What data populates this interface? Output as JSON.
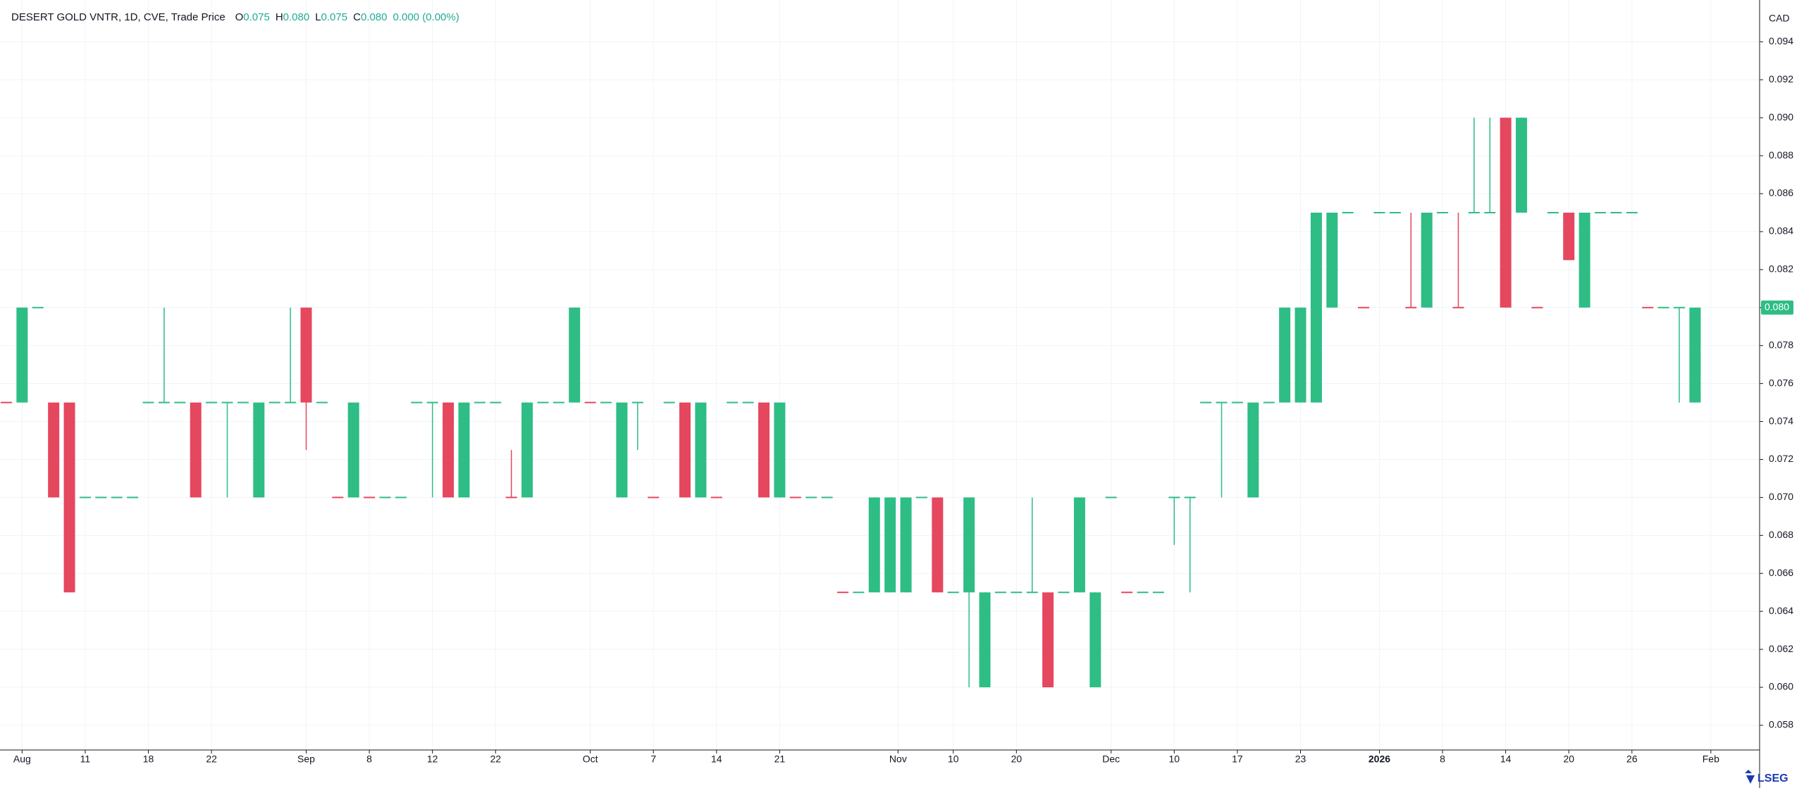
{
  "chart_data": {
    "type": "candlestick",
    "title": "DESERT GOLD VNTR, 1D, CVE, Trade Price",
    "ohlc_legend": [
      {
        "key": "O",
        "value": "0.075"
      },
      {
        "key": "H",
        "value": "0.080"
      },
      {
        "key": "L",
        "value": "0.075"
      },
      {
        "key": "C",
        "value": "0.080"
      }
    ],
    "change": "0.000 (0.00%)",
    "currency": "CAD",
    "brand": "LSEG",
    "up_color": "#2ebd85",
    "down_color": "#e5475f",
    "open": [
      0.075,
      0.075,
      0.08,
      0.075,
      0.075,
      0.07,
      0.07,
      0.07,
      0.07,
      0.075,
      0.075,
      0.075,
      0.075,
      0.075,
      0.075,
      0.075,
      0.07,
      0.075,
      0.075,
      0.08,
      0.075,
      0.07,
      0.07,
      0.07,
      0.07,
      0.07,
      0.075,
      0.075,
      0.075,
      0.07,
      0.075,
      0.075,
      0.07,
      0.07,
      0.075,
      0.075,
      0.075,
      0.075,
      0.075,
      0.07,
      0.075,
      0.07,
      0.075,
      0.075,
      0.07,
      0.07,
      0.075,
      0.075,
      0.075,
      0.07,
      0.07,
      0.07,
      0.07,
      0.065,
      0.065,
      0.065,
      0.065,
      0.065,
      0.07,
      0.07,
      0.065,
      0.065,
      0.06,
      0.065,
      0.065,
      0.065,
      0.065,
      0.065,
      0.065,
      0.06,
      0.07,
      0.065,
      0.065,
      0.065,
      0.07,
      0.07,
      0.075,
      0.075,
      0.075,
      0.07,
      0.075,
      0.075,
      0.075,
      0.075,
      0.08,
      0.085,
      0.08,
      0.085,
      0.085,
      0.08,
      0.08,
      0.085,
      0.08,
      0.085,
      0.085,
      0.09,
      0.085,
      0.08,
      0.085,
      0.085,
      0.08,
      0.085,
      0.085,
      0.085,
      0.08,
      0.08,
      0.08,
      0.075
    ],
    "high": [
      0.075,
      0.08,
      0.08,
      0.075,
      0.075,
      0.07,
      0.07,
      0.07,
      0.07,
      0.075,
      0.08,
      0.075,
      0.075,
      0.075,
      0.075,
      0.075,
      0.075,
      0.075,
      0.08,
      0.08,
      0.075,
      0.07,
      0.075,
      0.07,
      0.07,
      0.07,
      0.075,
      0.075,
      0.075,
      0.075,
      0.075,
      0.075,
      0.0725,
      0.075,
      0.075,
      0.075,
      0.08,
      0.075,
      0.075,
      0.075,
      0.075,
      0.07,
      0.075,
      0.075,
      0.075,
      0.07,
      0.075,
      0.075,
      0.075,
      0.075,
      0.07,
      0.07,
      0.07,
      0.065,
      0.065,
      0.07,
      0.07,
      0.07,
      0.07,
      0.07,
      0.065,
      0.07,
      0.065,
      0.065,
      0.065,
      0.07,
      0.065,
      0.065,
      0.07,
      0.065,
      0.07,
      0.065,
      0.065,
      0.065,
      0.07,
      0.07,
      0.075,
      0.075,
      0.075,
      0.075,
      0.075,
      0.08,
      0.08,
      0.085,
      0.085,
      0.085,
      0.08,
      0.085,
      0.085,
      0.085,
      0.085,
      0.085,
      0.085,
      0.09,
      0.09,
      0.09,
      0.09,
      0.08,
      0.085,
      0.085,
      0.085,
      0.085,
      0.085,
      0.085,
      0.08,
      0.08,
      0.08,
      0.08
    ],
    "low": [
      0.075,
      0.075,
      0.08,
      0.07,
      0.065,
      0.07,
      0.07,
      0.07,
      0.07,
      0.075,
      0.075,
      0.075,
      0.07,
      0.075,
      0.07,
      0.075,
      0.07,
      0.075,
      0.075,
      0.0725,
      0.075,
      0.07,
      0.07,
      0.07,
      0.07,
      0.07,
      0.075,
      0.07,
      0.07,
      0.07,
      0.075,
      0.075,
      0.07,
      0.07,
      0.075,
      0.075,
      0.075,
      0.075,
      0.075,
      0.07,
      0.0725,
      0.07,
      0.075,
      0.07,
      0.07,
      0.07,
      0.075,
      0.075,
      0.07,
      0.07,
      0.07,
      0.07,
      0.07,
      0.065,
      0.065,
      0.065,
      0.065,
      0.065,
      0.07,
      0.065,
      0.065,
      0.06,
      0.06,
      0.065,
      0.065,
      0.065,
      0.06,
      0.065,
      0.065,
      0.06,
      0.07,
      0.065,
      0.065,
      0.065,
      0.0675,
      0.065,
      0.075,
      0.07,
      0.075,
      0.07,
      0.075,
      0.075,
      0.075,
      0.075,
      0.08,
      0.085,
      0.08,
      0.085,
      0.085,
      0.08,
      0.08,
      0.085,
      0.08,
      0.085,
      0.085,
      0.08,
      0.085,
      0.08,
      0.085,
      0.0825,
      0.08,
      0.085,
      0.085,
      0.085,
      0.08,
      0.08,
      0.075,
      0.075
    ],
    "close": [
      0.075,
      0.08,
      0.08,
      0.07,
      0.065,
      0.07,
      0.07,
      0.07,
      0.07,
      0.075,
      0.075,
      0.075,
      0.07,
      0.075,
      0.075,
      0.075,
      0.075,
      0.075,
      0.075,
      0.075,
      0.075,
      0.07,
      0.075,
      0.07,
      0.07,
      0.07,
      0.075,
      0.075,
      0.07,
      0.075,
      0.075,
      0.075,
      0.07,
      0.075,
      0.075,
      0.075,
      0.08,
      0.075,
      0.075,
      0.075,
      0.075,
      0.07,
      0.075,
      0.07,
      0.075,
      0.07,
      0.075,
      0.075,
      0.07,
      0.075,
      0.07,
      0.07,
      0.07,
      0.065,
      0.065,
      0.07,
      0.07,
      0.07,
      0.07,
      0.065,
      0.065,
      0.07,
      0.065,
      0.065,
      0.065,
      0.065,
      0.06,
      0.065,
      0.07,
      0.065,
      0.07,
      0.065,
      0.065,
      0.065,
      0.07,
      0.07,
      0.075,
      0.075,
      0.075,
      0.075,
      0.075,
      0.08,
      0.08,
      0.085,
      0.085,
      0.085,
      0.08,
      0.085,
      0.085,
      0.08,
      0.085,
      0.085,
      0.08,
      0.085,
      0.085,
      0.08,
      0.09,
      0.08,
      0.085,
      0.0825,
      0.085,
      0.085,
      0.085,
      0.085,
      0.08,
      0.08,
      0.08,
      0.08
    ],
    "xlim": [
      -0.4,
      111
    ],
    "xticks": [
      {
        "value": 1,
        "label": "Aug"
      },
      {
        "value": 5,
        "label": "11"
      },
      {
        "value": 9,
        "label": "18"
      },
      {
        "value": 13,
        "label": "22"
      },
      {
        "value": 19,
        "label": "Sep"
      },
      {
        "value": 23,
        "label": "8"
      },
      {
        "value": 27,
        "label": "12"
      },
      {
        "value": 31,
        "label": "22"
      },
      {
        "value": 37,
        "label": "Oct"
      },
      {
        "value": 41,
        "label": "7"
      },
      {
        "value": 45,
        "label": "14"
      },
      {
        "value": 49,
        "label": "21"
      },
      {
        "value": 56.5,
        "label": "Nov"
      },
      {
        "value": 60,
        "label": "10"
      },
      {
        "value": 64,
        "label": "20"
      },
      {
        "value": 70,
        "label": "Dec"
      },
      {
        "value": 74,
        "label": "10"
      },
      {
        "value": 78,
        "label": "17"
      },
      {
        "value": 82,
        "label": "23"
      },
      {
        "value": 87,
        "label": "2026",
        "bold": true
      },
      {
        "value": 91,
        "label": "8"
      },
      {
        "value": 95,
        "label": "14"
      },
      {
        "value": 99,
        "label": "20"
      },
      {
        "value": 103,
        "label": "26"
      },
      {
        "value": 108,
        "label": "Feb"
      }
    ],
    "ylim": [
      0.0567,
      0.0962
    ],
    "yticks": [
      {
        "value": 0.058,
        "label": "0.058"
      },
      {
        "value": 0.06,
        "label": "0.060"
      },
      {
        "value": 0.062,
        "label": "0.062"
      },
      {
        "value": 0.064,
        "label": "0.064"
      },
      {
        "value": 0.066,
        "label": "0.066"
      },
      {
        "value": 0.068,
        "label": "0.068"
      },
      {
        "value": 0.07,
        "label": "0.070"
      },
      {
        "value": 0.072,
        "label": "0.072"
      },
      {
        "value": 0.074,
        "label": "0.074"
      },
      {
        "value": 0.076,
        "label": "0.076"
      },
      {
        "value": 0.078,
        "label": "0.078"
      },
      {
        "value": 0.08,
        "label": "0.080"
      },
      {
        "value": 0.082,
        "label": "0.082"
      },
      {
        "value": 0.084,
        "label": "0.084"
      },
      {
        "value": 0.086,
        "label": "0.086"
      },
      {
        "value": 0.088,
        "label": "0.088"
      },
      {
        "value": 0.09,
        "label": "0.090"
      },
      {
        "value": 0.092,
        "label": "0.092"
      },
      {
        "value": 0.094,
        "label": "0.094"
      }
    ],
    "last_price": {
      "value": 0.08,
      "label": "0.080"
    },
    "grid": true
  }
}
